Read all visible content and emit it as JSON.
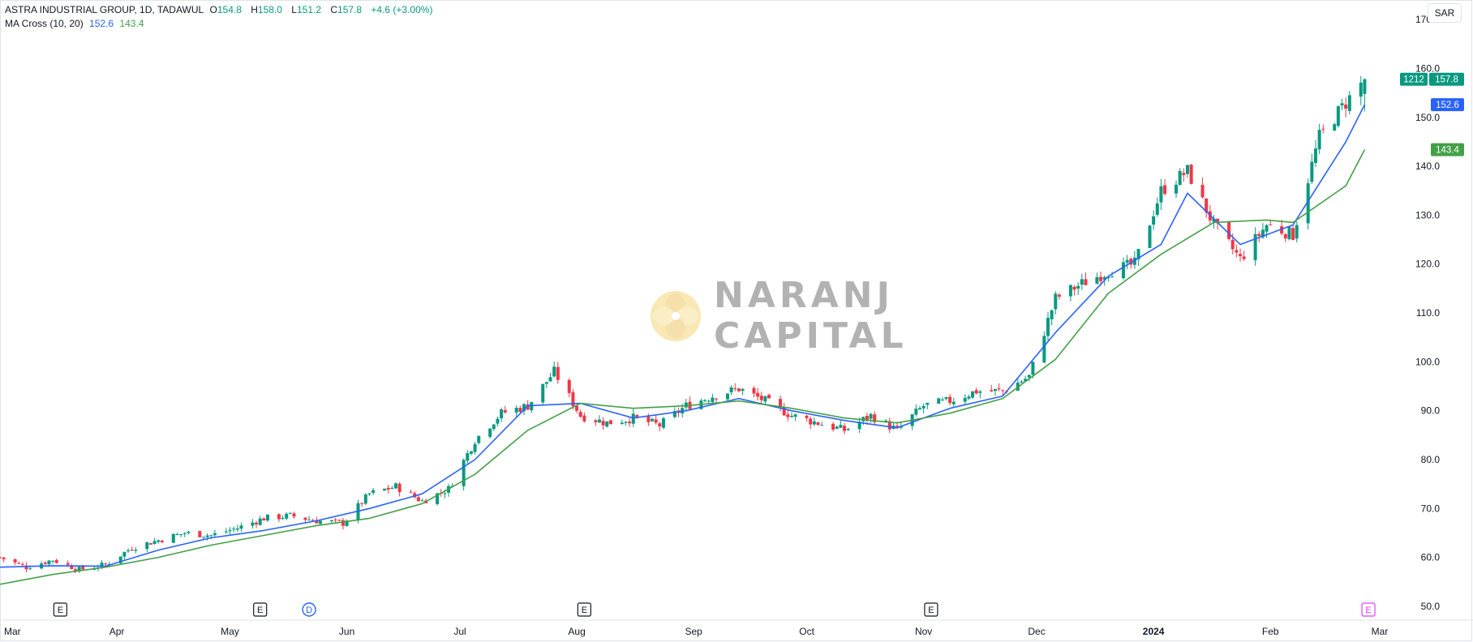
{
  "legend": {
    "symbol": "ASTRA INDUSTRIAL GROUP, 1D, TADAWUL",
    "o_label": "O",
    "o_value": "154.8",
    "h_label": "H",
    "h_value": "158.0",
    "l_label": "L",
    "l_value": "151.2",
    "c_label": "C",
    "c_value": "157.8",
    "change": "+4.6 (+3.00%)",
    "ma_label": "MA Cross (10, 20)",
    "ma10_value": "152.6",
    "ma20_value": "143.4"
  },
  "currency": "SAR",
  "watermark": {
    "line1": "NARANJ",
    "line2": "CAPITAL"
  },
  "price_tags": {
    "countdown": "1212",
    "last_price": "157.8",
    "ma10": "152.6",
    "ma20": "143.4"
  },
  "colors": {
    "up": "#089981",
    "down": "#f23645",
    "ma10": "#2962ff",
    "ma20": "#43a047",
    "event_default": "#131722",
    "event_upcoming": "#e040fb",
    "dividend": "#2962ff"
  },
  "chart_data": {
    "type": "candlestick",
    "title": "ASTRA INDUSTRIAL GROUP, 1D, TADAWUL",
    "ylabel": "SAR",
    "ylim": [
      48,
      174
    ],
    "y_ticks": [
      "170.0",
      "160.0",
      "150.0",
      "140.0",
      "130.0",
      "120.0",
      "110.0",
      "100.0",
      "90.0",
      "80.0",
      "70.0",
      "60.0",
      "50.0"
    ],
    "y_tick_values": [
      170,
      160,
      150,
      140,
      130,
      120,
      110,
      100,
      90,
      80,
      70,
      60,
      50
    ],
    "x_ticks": [
      "Mar",
      "Apr",
      "May",
      "Jun",
      "Jul",
      "Aug",
      "Sep",
      "Oct",
      "Nov",
      "Dec",
      "2024",
      "Feb",
      "Mar"
    ],
    "x_tick_dates": [
      "2023-03-01",
      "2023-04-01",
      "2023-05-01",
      "2023-06-01",
      "2023-07-01",
      "2023-08-01",
      "2023-09-01",
      "2023-10-01",
      "2023-11-01",
      "2023-12-01",
      "2024-01-01",
      "2024-02-01",
      "2024-03-01"
    ],
    "x_range": [
      "2023-03-01",
      "2024-03-01"
    ],
    "grid": false,
    "last_bar": {
      "open": 154.8,
      "high": 158.0,
      "low": 151.2,
      "close": 157.8,
      "change": 4.6,
      "change_pct": 3.0
    },
    "series": [
      {
        "name": "Price",
        "points": [
          [
            "2023-03-01",
            60
          ],
          [
            "2023-03-08",
            58
          ],
          [
            "2023-03-15",
            59.5
          ],
          [
            "2023-03-22",
            57.5
          ],
          [
            "2023-03-29",
            58.5
          ],
          [
            "2023-04-05",
            62
          ],
          [
            "2023-04-12",
            63.5
          ],
          [
            "2023-04-19",
            65
          ],
          [
            "2023-04-26",
            64.5
          ],
          [
            "2023-05-03",
            66
          ],
          [
            "2023-05-10",
            68
          ],
          [
            "2023-05-17",
            68.5
          ],
          [
            "2023-05-24",
            67.5
          ],
          [
            "2023-05-31",
            67
          ],
          [
            "2023-06-07",
            73
          ],
          [
            "2023-06-14",
            74.5
          ],
          [
            "2023-06-21",
            71.5
          ],
          [
            "2023-06-28",
            74
          ],
          [
            "2023-07-05",
            84
          ],
          [
            "2023-07-12",
            89.5
          ],
          [
            "2023-07-19",
            91
          ],
          [
            "2023-07-26",
            98
          ],
          [
            "2023-08-02",
            89
          ],
          [
            "2023-08-09",
            87.5
          ],
          [
            "2023-08-16",
            88.5
          ],
          [
            "2023-08-23",
            87
          ],
          [
            "2023-08-30",
            91
          ],
          [
            "2023-09-06",
            93
          ],
          [
            "2023-09-13",
            94.5
          ],
          [
            "2023-09-20",
            92
          ],
          [
            "2023-09-27",
            89
          ],
          [
            "2023-10-04",
            87.5
          ],
          [
            "2023-10-11",
            86
          ],
          [
            "2023-10-18",
            89
          ],
          [
            "2023-10-25",
            86
          ],
          [
            "2023-11-01",
            91
          ],
          [
            "2023-11-08",
            92
          ],
          [
            "2023-11-15",
            94
          ],
          [
            "2023-11-22",
            94
          ],
          [
            "2023-11-29",
            97
          ],
          [
            "2023-12-06",
            113
          ],
          [
            "2023-12-13",
            116
          ],
          [
            "2023-12-20",
            118.5
          ],
          [
            "2023-12-27",
            120
          ],
          [
            "2024-01-03",
            135
          ],
          [
            "2024-01-10",
            139
          ],
          [
            "2024-01-17",
            128
          ],
          [
            "2024-01-24",
            121
          ],
          [
            "2024-01-31",
            128
          ],
          [
            "2024-02-07",
            126
          ],
          [
            "2024-02-14",
            146
          ],
          [
            "2024-02-21",
            153
          ],
          [
            "2024-02-26",
            157.8
          ]
        ]
      },
      {
        "name": "MA 10",
        "points": [
          [
            "2023-03-01",
            58
          ],
          [
            "2023-03-15",
            58.3
          ],
          [
            "2023-03-29",
            58.2
          ],
          [
            "2023-04-12",
            61.5
          ],
          [
            "2023-04-26",
            64
          ],
          [
            "2023-05-10",
            65.5
          ],
          [
            "2023-05-24",
            67.5
          ],
          [
            "2023-06-07",
            70
          ],
          [
            "2023-06-21",
            73
          ],
          [
            "2023-07-05",
            80
          ],
          [
            "2023-07-19",
            91
          ],
          [
            "2023-08-02",
            91.5
          ],
          [
            "2023-08-16",
            88.5
          ],
          [
            "2023-08-30",
            90
          ],
          [
            "2023-09-13",
            92.5
          ],
          [
            "2023-09-27",
            90
          ],
          [
            "2023-10-11",
            88
          ],
          [
            "2023-10-25",
            86.5
          ],
          [
            "2023-11-08",
            90.5
          ],
          [
            "2023-11-22",
            93
          ],
          [
            "2023-12-06",
            106
          ],
          [
            "2023-12-20",
            117.5
          ],
          [
            "2024-01-03",
            124
          ],
          [
            "2024-01-10",
            134.5
          ],
          [
            "2024-01-24",
            124
          ],
          [
            "2024-02-07",
            128
          ],
          [
            "2024-02-21",
            145
          ],
          [
            "2024-02-26",
            152.6
          ]
        ]
      },
      {
        "name": "MA 20",
        "points": [
          [
            "2023-03-01",
            54.5
          ],
          [
            "2023-03-15",
            56.5
          ],
          [
            "2023-03-29",
            58
          ],
          [
            "2023-04-12",
            60
          ],
          [
            "2023-04-26",
            62.5
          ],
          [
            "2023-05-10",
            64.5
          ],
          [
            "2023-05-24",
            66.5
          ],
          [
            "2023-06-07",
            68
          ],
          [
            "2023-06-21",
            71
          ],
          [
            "2023-07-05",
            77
          ],
          [
            "2023-07-19",
            86
          ],
          [
            "2023-08-02",
            91.5
          ],
          [
            "2023-08-16",
            90.5
          ],
          [
            "2023-08-30",
            91
          ],
          [
            "2023-09-13",
            92
          ],
          [
            "2023-09-27",
            90.5
          ],
          [
            "2023-10-11",
            88.5
          ],
          [
            "2023-10-25",
            87.5
          ],
          [
            "2023-11-08",
            89.5
          ],
          [
            "2023-11-22",
            92.5
          ],
          [
            "2023-12-06",
            100.5
          ],
          [
            "2023-12-20",
            114
          ],
          [
            "2024-01-03",
            122
          ],
          [
            "2024-01-17",
            128.5
          ],
          [
            "2024-01-31",
            129
          ],
          [
            "2024-02-07",
            128.5
          ],
          [
            "2024-02-21",
            136
          ],
          [
            "2024-02-26",
            143.4
          ]
        ]
      }
    ],
    "events": [
      {
        "label": "E",
        "date": "2023-03-17",
        "kind": "earnings"
      },
      {
        "label": "E",
        "date": "2023-05-09",
        "kind": "earnings"
      },
      {
        "label": "D",
        "date": "2023-05-22",
        "kind": "dividend"
      },
      {
        "label": "E",
        "date": "2023-08-03",
        "kind": "earnings"
      },
      {
        "label": "E",
        "date": "2023-11-03",
        "kind": "earnings"
      },
      {
        "label": "E",
        "date": "2024-02-27",
        "kind": "upcoming"
      }
    ]
  }
}
